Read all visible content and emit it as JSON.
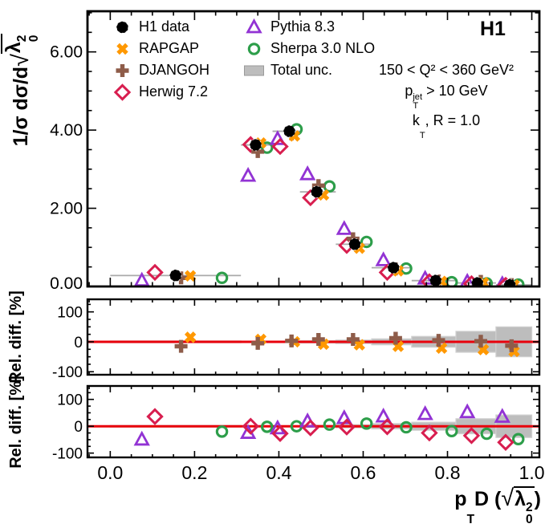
{
  "header": {
    "experiment": "H1",
    "conditions": {
      "q2": "150 < Q² < 360 GeV²",
      "pt_jet": {
        "base": "p",
        "sup": "jet",
        "sub": "T",
        "rest": " > 10 GeV"
      },
      "kt": {
        "base": "k",
        "sub": "T",
        "rest": ", R = 1.0"
      }
    }
  },
  "legend": {
    "position": "top-left",
    "left": [
      {
        "key": "h1",
        "label": "H1 data"
      },
      {
        "key": "rapgap",
        "label": "RAPGAP"
      },
      {
        "key": "djangoh",
        "label": "DJANGOH"
      },
      {
        "key": "herwig",
        "label": "Herwig 7.2"
      }
    ],
    "right": [
      {
        "key": "pythia",
        "label": "Pythia 8.3"
      },
      {
        "key": "sherpa",
        "label": "Sherpa 3.0 NLO"
      },
      {
        "key": "unc",
        "label": "Total unc."
      }
    ]
  },
  "axes": {
    "y_main_title": {
      "prefix": "1/σ dσ/d",
      "rad_sym": "λ",
      "rad_sup": "2",
      "rad_sub": "0"
    },
    "y_ratio_title": "Rel. diff. [%]",
    "x_title": {
      "base": "p",
      "base_sub": "T",
      "mid": "D (",
      "rad_sym": "λ",
      "rad_sup": "2",
      "rad_sub": "0",
      "close": ")"
    }
  },
  "colors": {
    "h1": "#000000",
    "rapgap": "#ff9800",
    "djangoh": "#8e5c49",
    "herwig": "#d81e4f",
    "pythia": "#9233d4",
    "sherpa": "#2d9e4a",
    "band": "#bdbdbd",
    "band_edge": "#d0d0d0",
    "zero_line": "#e8000b",
    "bin_line": "#aaaaaa"
  },
  "chart_data": [
    {
      "id": "main",
      "type": "scatter",
      "title": "",
      "xlabel": "p_T D (sqrt(lambda_0^2))",
      "ylabel": "1/sigma dsigma/d sqrt(lambda_0^2)",
      "xlim": [
        -0.054,
        1.018
      ],
      "ylim": [
        0,
        7.04
      ],
      "grid": false,
      "legend_position": "top-left",
      "yticks": [
        {
          "v": 0,
          "label": "0.00"
        },
        {
          "v": 2,
          "label": "2.00"
        },
        {
          "v": 4,
          "label": "4.00"
        },
        {
          "v": 6,
          "label": "6.00"
        }
      ],
      "y_minor_step": 0.5,
      "xticks": [
        0,
        0.2,
        0.4,
        0.6,
        0.8,
        1.0
      ],
      "x_minor_step": 0.05,
      "show_x_labels": false,
      "bin_edges": [
        0,
        0.31,
        0.385,
        0.45,
        0.535,
        0.62,
        0.715,
        0.82,
        0.915,
        1.0
      ],
      "series": [
        {
          "key": "sherpa",
          "name": "Sherpa 3.0 NLO",
          "marker": "open-circle",
          "x": [
            0.265,
            0.372,
            0.442,
            0.52,
            0.608,
            0.702,
            0.81,
            0.893,
            0.968
          ],
          "y": [
            0.22,
            3.55,
            4.02,
            2.56,
            1.14,
            0.46,
            0.11,
            0.08,
            0.05
          ]
        },
        {
          "key": "pythia",
          "name": "Pythia 8.3",
          "marker": "open-triangle",
          "x": [
            0.075,
            0.327,
            0.397,
            0.468,
            0.555,
            0.648,
            0.747,
            0.847,
            0.93
          ],
          "y": [
            0.15,
            2.83,
            3.77,
            2.87,
            1.47,
            0.67,
            0.2,
            0.12,
            0.06
          ]
        },
        {
          "key": "herwig",
          "name": "Herwig 7.2",
          "marker": "open-diamond",
          "x": [
            0.106,
            0.333,
            0.403,
            0.475,
            0.561,
            0.657,
            0.757,
            0.857,
            0.938
          ],
          "y": [
            0.36,
            3.63,
            3.58,
            2.27,
            1.05,
            0.36,
            0.12,
            0.07,
            0.03
          ]
        },
        {
          "key": "djangoh",
          "name": "DJANGOH",
          "marker": "filled-plus",
          "x": [
            0.168,
            0.35,
            0.43,
            0.494,
            0.576,
            0.677,
            0.779,
            0.879,
            0.952
          ],
          "y": [
            0.22,
            3.45,
            3.9,
            2.58,
            1.22,
            0.45,
            0.14,
            0.13,
            0.05
          ]
        },
        {
          "key": "rapgap",
          "name": "RAPGAP",
          "marker": "filled-x",
          "x": [
            0.19,
            0.357,
            0.437,
            0.506,
            0.591,
            0.683,
            0.786,
            0.885,
            0.958
          ],
          "y": [
            0.27,
            3.67,
            3.85,
            2.34,
            0.98,
            0.4,
            0.13,
            0.1,
            0.04
          ]
        },
        {
          "key": "h1",
          "name": "H1 data",
          "marker": "filled-circle",
          "bin_lines": true,
          "x": [
            0.155,
            0.345,
            0.425,
            0.49,
            0.58,
            0.672,
            0.772,
            0.871,
            0.948
          ],
          "y": [
            0.28,
            3.62,
            3.97,
            2.42,
            1.08,
            0.48,
            0.15,
            0.09,
            0.04
          ]
        }
      ]
    },
    {
      "id": "rel-diff-mc",
      "type": "scatter",
      "ylabel": "Rel. diff. [%]",
      "xlim": [
        -0.054,
        1.018
      ],
      "ylim": [
        -110,
        142
      ],
      "yticks": [
        {
          "v": -100,
          "label": "-100"
        },
        {
          "v": 0,
          "label": "0"
        },
        {
          "v": 100,
          "label": "100"
        }
      ],
      "y_minor_step": 25,
      "xticks": [
        0,
        0.2,
        0.4,
        0.6,
        0.8,
        1.0
      ],
      "x_minor_step": 0.05,
      "show_x_labels": false,
      "zero_line": true,
      "bin_edges": [
        0,
        0.31,
        0.385,
        0.45,
        0.535,
        0.62,
        0.715,
        0.82,
        0.915,
        1.0
      ],
      "band_pct": [
        3,
        2,
        2,
        4,
        6,
        10,
        18,
        35,
        50
      ],
      "series": [
        {
          "key": "rapgap",
          "name": "RAPGAP",
          "marker": "filled-x",
          "x": [
            0.19,
            0.357,
            0.437,
            0.506,
            0.591,
            0.683,
            0.786,
            0.885,
            0.958
          ],
          "y": [
            15,
            8,
            0,
            -8,
            -10,
            -15,
            -21,
            -26,
            -32
          ]
        },
        {
          "key": "djangoh",
          "name": "DJANGOH",
          "marker": "filled-plus",
          "x": [
            0.168,
            0.35,
            0.43,
            0.494,
            0.576,
            0.677,
            0.779,
            0.879,
            0.952
          ],
          "y": [
            -15,
            -5,
            3,
            8,
            8,
            12,
            5,
            2,
            -13
          ]
        }
      ]
    },
    {
      "id": "rel-diff-models",
      "type": "scatter",
      "ylabel": "Rel. diff. [%]",
      "xlim": [
        -0.054,
        1.018
      ],
      "ylim": [
        -116,
        150
      ],
      "yticks": [
        {
          "v": -100,
          "label": "-100"
        },
        {
          "v": 0,
          "label": "0"
        },
        {
          "v": 100,
          "label": "100"
        }
      ],
      "y_minor_step": 25,
      "xticks": [
        0,
        0.2,
        0.4,
        0.6,
        0.8,
        1.0
      ],
      "x_tick_labels": [
        "0.0",
        "0.2",
        "0.4",
        "0.6",
        "0.8",
        "1.0"
      ],
      "x_minor_step": 0.05,
      "show_x_labels": true,
      "zero_line": true,
      "bin_edges": [
        0,
        0.31,
        0.385,
        0.45,
        0.535,
        0.62,
        0.715,
        0.82,
        0.915,
        1.0
      ],
      "band_pct": [
        3,
        2,
        2,
        4,
        6,
        10,
        15,
        28,
        42
      ],
      "series": [
        {
          "key": "sherpa",
          "name": "Sherpa 3.0 NLO",
          "marker": "open-circle",
          "x": [
            0.265,
            0.372,
            0.442,
            0.52,
            0.608,
            0.702,
            0.81,
            0.893,
            0.968
          ],
          "y": [
            -20,
            -2,
            0,
            6,
            10,
            -4,
            -18,
            -28,
            -48
          ]
        },
        {
          "key": "pythia",
          "name": "Pythia 8.3",
          "marker": "open-triangle",
          "x": [
            0.075,
            0.327,
            0.397,
            0.468,
            0.555,
            0.648,
            0.747,
            0.847,
            0.93
          ],
          "y": [
            -50,
            -25,
            -8,
            18,
            30,
            36,
            45,
            52,
            35
          ]
        },
        {
          "key": "herwig",
          "name": "Herwig 7.2",
          "marker": "open-diamond",
          "x": [
            0.106,
            0.333,
            0.403,
            0.475,
            0.561,
            0.657,
            0.757,
            0.857,
            0.938
          ],
          "y": [
            36,
            0,
            -27,
            -6,
            -3,
            -2,
            -25,
            -35,
            -60
          ]
        }
      ]
    }
  ]
}
